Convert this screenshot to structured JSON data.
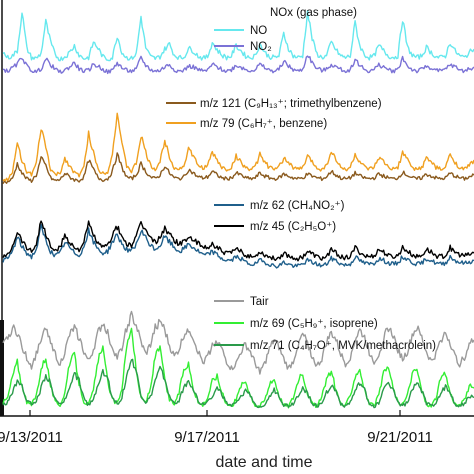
{
  "chart_data": {
    "type": "line",
    "xlabel": "date and time",
    "x_ticks": [
      "9/13/2011",
      "9/17/2011",
      "9/21/2011"
    ],
    "panels": [
      {
        "name": "nox",
        "legend_title": "NOx (gas phase)",
        "legend_placement": "top-right",
        "series": [
          {
            "name": "NO",
            "color": "#66e8ee",
            "values": [
              0.5,
              0.44,
              0.46,
              0.52,
              0.98,
              0.55,
              0.44,
              0.43,
              0.49,
              0.86,
              0.62,
              0.47,
              0.42,
              0.45,
              0.5,
              0.58,
              0.47,
              0.43,
              0.44,
              0.62,
              0.55,
              0.45,
              0.42,
              0.44,
              0.7,
              0.5,
              0.44,
              0.43,
              0.48,
              0.92,
              0.56,
              0.45,
              0.43,
              0.45,
              0.54,
              0.6,
              0.47,
              0.44,
              0.44,
              0.55,
              0.52,
              0.46,
              0.43,
              0.45,
              0.62,
              0.53,
              0.47,
              0.44,
              0.46,
              0.58,
              0.52,
              0.46,
              0.44,
              0.46,
              0.6,
              0.5,
              0.45,
              0.44,
              0.46,
              0.72,
              0.55,
              0.46,
              0.44,
              0.46,
              0.98,
              0.66,
              0.48,
              0.44,
              0.46,
              0.62,
              0.53,
              0.46,
              0.44,
              0.46,
              0.85,
              0.58,
              0.47,
              0.44,
              0.46,
              0.58,
              0.52,
              0.46,
              0.44,
              0.46,
              0.9,
              0.56,
              0.47,
              0.44,
              0.46,
              0.56,
              0.5,
              0.45,
              0.44,
              0.46,
              0.62,
              0.52,
              0.46,
              0.44,
              0.5,
              0.54
            ]
          },
          {
            "name": "NO₂",
            "color": "#7b72d6",
            "values": [
              0.3,
              0.28,
              0.32,
              0.36,
              0.45,
              0.34,
              0.29,
              0.27,
              0.31,
              0.42,
              0.36,
              0.3,
              0.27,
              0.29,
              0.33,
              0.38,
              0.31,
              0.28,
              0.29,
              0.36,
              0.34,
              0.3,
              0.27,
              0.29,
              0.38,
              0.32,
              0.29,
              0.28,
              0.3,
              0.44,
              0.35,
              0.3,
              0.28,
              0.29,
              0.33,
              0.36,
              0.3,
              0.28,
              0.29,
              0.34,
              0.33,
              0.3,
              0.28,
              0.29,
              0.36,
              0.33,
              0.3,
              0.28,
              0.3,
              0.35,
              0.33,
              0.3,
              0.29,
              0.3,
              0.36,
              0.32,
              0.29,
              0.28,
              0.3,
              0.4,
              0.34,
              0.3,
              0.28,
              0.3,
              0.48,
              0.38,
              0.31,
              0.29,
              0.3,
              0.36,
              0.33,
              0.3,
              0.28,
              0.3,
              0.42,
              0.35,
              0.3,
              0.28,
              0.3,
              0.35,
              0.33,
              0.3,
              0.28,
              0.3,
              0.44,
              0.34,
              0.3,
              0.28,
              0.3,
              0.34,
              0.32,
              0.29,
              0.28,
              0.3,
              0.36,
              0.33,
              0.3,
              0.28,
              0.31,
              0.33
            ]
          }
        ]
      },
      {
        "name": "aromatics",
        "legend_placement": "top-right",
        "series": [
          {
            "name": "m/z 121 (C₉H₁₃⁺; trimethylbenzene)",
            "color": "#8a5a1e",
            "values": [
              0.1,
              0.11,
              0.14,
              0.3,
              0.2,
              0.14,
              0.12,
              0.18,
              0.36,
              0.28,
              0.15,
              0.12,
              0.13,
              0.2,
              0.16,
              0.13,
              0.12,
              0.16,
              0.34,
              0.24,
              0.15,
              0.13,
              0.14,
              0.22,
              0.4,
              0.26,
              0.16,
              0.14,
              0.18,
              0.3,
              0.22,
              0.16,
              0.14,
              0.18,
              0.28,
              0.2,
              0.15,
              0.14,
              0.16,
              0.24,
              0.2,
              0.16,
              0.15,
              0.16,
              0.22,
              0.18,
              0.15,
              0.14,
              0.15,
              0.2,
              0.18,
              0.15,
              0.14,
              0.15,
              0.2,
              0.17,
              0.15,
              0.14,
              0.15,
              0.19,
              0.17,
              0.15,
              0.14,
              0.15,
              0.19,
              0.17,
              0.15,
              0.14,
              0.16,
              0.22,
              0.18,
              0.15,
              0.14,
              0.15,
              0.2,
              0.17,
              0.15,
              0.14,
              0.15,
              0.19,
              0.17,
              0.15,
              0.14,
              0.15,
              0.21,
              0.18,
              0.15,
              0.14,
              0.15,
              0.19,
              0.17,
              0.15,
              0.14,
              0.15,
              0.2,
              0.17,
              0.15,
              0.14,
              0.16,
              0.18
            ]
          },
          {
            "name": "m/z 79 (C₆H₇⁺, benzene)",
            "color": "#f0a020",
            "values": [
              0.12,
              0.14,
              0.2,
              0.52,
              0.34,
              0.22,
              0.18,
              0.3,
              0.68,
              0.48,
              0.24,
              0.18,
              0.2,
              0.36,
              0.28,
              0.2,
              0.18,
              0.26,
              0.62,
              0.42,
              0.24,
              0.2,
              0.22,
              0.4,
              0.85,
              0.5,
              0.28,
              0.22,
              0.3,
              0.6,
              0.42,
              0.28,
              0.24,
              0.32,
              0.55,
              0.38,
              0.26,
              0.24,
              0.28,
              0.46,
              0.38,
              0.28,
              0.26,
              0.28,
              0.42,
              0.34,
              0.26,
              0.24,
              0.26,
              0.38,
              0.32,
              0.26,
              0.24,
              0.26,
              0.4,
              0.32,
              0.26,
              0.24,
              0.26,
              0.36,
              0.32,
              0.26,
              0.24,
              0.26,
              0.38,
              0.32,
              0.26,
              0.24,
              0.28,
              0.44,
              0.34,
              0.26,
              0.24,
              0.26,
              0.4,
              0.32,
              0.26,
              0.24,
              0.26,
              0.36,
              0.32,
              0.26,
              0.24,
              0.26,
              0.42,
              0.34,
              0.26,
              0.24,
              0.26,
              0.36,
              0.32,
              0.26,
              0.24,
              0.26,
              0.4,
              0.32,
              0.26,
              0.24,
              0.28,
              0.34
            ]
          }
        ]
      },
      {
        "name": "oxygenates",
        "legend_placement": "top-right",
        "series": [
          {
            "name": "m/z 62 (CH₄NO₂⁺)",
            "color": "#1f5f8b",
            "values": [
              0.3,
              0.32,
              0.4,
              0.55,
              0.45,
              0.38,
              0.34,
              0.42,
              0.66,
              0.52,
              0.4,
              0.35,
              0.38,
              0.5,
              0.44,
              0.38,
              0.36,
              0.44,
              0.62,
              0.5,
              0.42,
              0.38,
              0.4,
              0.5,
              0.58,
              0.48,
              0.42,
              0.4,
              0.46,
              0.62,
              0.54,
              0.46,
              0.42,
              0.46,
              0.56,
              0.5,
              0.44,
              0.4,
              0.42,
              0.48,
              0.44,
              0.4,
              0.36,
              0.36,
              0.4,
              0.36,
              0.32,
              0.3,
              0.3,
              0.34,
              0.32,
              0.28,
              0.26,
              0.26,
              0.3,
              0.28,
              0.26,
              0.24,
              0.24,
              0.28,
              0.26,
              0.24,
              0.24,
              0.26,
              0.3,
              0.28,
              0.26,
              0.24,
              0.26,
              0.32,
              0.3,
              0.26,
              0.25,
              0.26,
              0.34,
              0.3,
              0.27,
              0.26,
              0.27,
              0.32,
              0.3,
              0.27,
              0.26,
              0.27,
              0.34,
              0.31,
              0.28,
              0.26,
              0.27,
              0.32,
              0.3,
              0.27,
              0.26,
              0.27,
              0.34,
              0.3,
              0.28,
              0.27,
              0.28,
              0.3
            ]
          },
          {
            "name": "m/z 45 (C₂H₅O⁺)",
            "color": "#000000",
            "values": [
              0.34,
              0.36,
              0.46,
              0.62,
              0.52,
              0.44,
              0.4,
              0.48,
              0.74,
              0.58,
              0.46,
              0.4,
              0.44,
              0.58,
              0.5,
              0.44,
              0.42,
              0.5,
              0.7,
              0.58,
              0.48,
              0.44,
              0.46,
              0.58,
              0.66,
              0.56,
              0.48,
              0.46,
              0.54,
              0.72,
              0.62,
              0.54,
              0.5,
              0.54,
              0.66,
              0.58,
              0.52,
              0.48,
              0.5,
              0.56,
              0.52,
              0.48,
              0.44,
              0.44,
              0.48,
              0.44,
              0.4,
              0.38,
              0.38,
              0.42,
              0.4,
              0.36,
              0.34,
              0.34,
              0.4,
              0.36,
              0.34,
              0.32,
              0.33,
              0.38,
              0.35,
              0.33,
              0.32,
              0.34,
              0.4,
              0.37,
              0.34,
              0.32,
              0.34,
              0.42,
              0.38,
              0.34,
              0.33,
              0.34,
              0.44,
              0.39,
              0.35,
              0.34,
              0.35,
              0.42,
              0.39,
              0.35,
              0.34,
              0.35,
              0.44,
              0.4,
              0.36,
              0.34,
              0.35,
              0.42,
              0.39,
              0.35,
              0.34,
              0.35,
              0.44,
              0.39,
              0.36,
              0.35,
              0.36,
              0.38
            ]
          }
        ]
      },
      {
        "name": "biogenic",
        "legend_placement": "top-right",
        "series": [
          {
            "name": "Tair",
            "color": "#9a9a9a",
            "values": [
              0.55,
              0.62,
              0.7,
              0.66,
              0.55,
              0.45,
              0.38,
              0.48,
              0.62,
              0.68,
              0.6,
              0.48,
              0.4,
              0.5,
              0.64,
              0.7,
              0.62,
              0.5,
              0.42,
              0.52,
              0.66,
              0.74,
              0.66,
              0.54,
              0.45,
              0.54,
              0.7,
              0.8,
              0.72,
              0.58,
              0.48,
              0.56,
              0.7,
              0.76,
              0.68,
              0.55,
              0.46,
              0.52,
              0.64,
              0.7,
              0.62,
              0.5,
              0.42,
              0.46,
              0.56,
              0.6,
              0.52,
              0.42,
              0.36,
              0.4,
              0.5,
              0.56,
              0.5,
              0.4,
              0.34,
              0.4,
              0.52,
              0.6,
              0.54,
              0.44,
              0.36,
              0.42,
              0.56,
              0.64,
              0.58,
              0.46,
              0.38,
              0.44,
              0.58,
              0.66,
              0.6,
              0.48,
              0.4,
              0.46,
              0.6,
              0.68,
              0.62,
              0.5,
              0.42,
              0.48,
              0.62,
              0.7,
              0.64,
              0.52,
              0.44,
              0.5,
              0.64,
              0.7,
              0.62,
              0.5,
              0.42,
              0.48,
              0.6,
              0.66,
              0.58,
              0.46,
              0.4,
              0.46,
              0.56,
              0.6
            ]
          },
          {
            "name": "m/z 69 (C₅H₉⁺, isoprene)",
            "color": "#33ee33",
            "values": [
              0.08,
              0.12,
              0.3,
              0.42,
              0.2,
              0.08,
              0.06,
              0.14,
              0.36,
              0.46,
              0.22,
              0.08,
              0.06,
              0.16,
              0.4,
              0.48,
              0.24,
              0.09,
              0.06,
              0.18,
              0.44,
              0.52,
              0.26,
              0.1,
              0.07,
              0.2,
              0.55,
              0.72,
              0.34,
              0.12,
              0.08,
              0.2,
              0.46,
              0.54,
              0.26,
              0.1,
              0.07,
              0.16,
              0.36,
              0.4,
              0.2,
              0.08,
              0.06,
              0.12,
              0.26,
              0.3,
              0.16,
              0.07,
              0.05,
              0.1,
              0.22,
              0.26,
              0.14,
              0.06,
              0.05,
              0.1,
              0.22,
              0.28,
              0.14,
              0.06,
              0.05,
              0.12,
              0.26,
              0.32,
              0.16,
              0.07,
              0.05,
              0.12,
              0.28,
              0.34,
              0.18,
              0.07,
              0.05,
              0.14,
              0.3,
              0.36,
              0.18,
              0.07,
              0.05,
              0.14,
              0.32,
              0.38,
              0.2,
              0.08,
              0.06,
              0.14,
              0.32,
              0.36,
              0.18,
              0.07,
              0.05,
              0.12,
              0.28,
              0.32,
              0.16,
              0.07,
              0.05,
              0.1,
              0.22,
              0.2
            ]
          },
          {
            "name": "m/z 71 (C₄H₇O⁺, MVK/methacrolein)",
            "color": "#2a9a4a",
            "values": [
              0.06,
              0.08,
              0.16,
              0.26,
              0.22,
              0.1,
              0.06,
              0.09,
              0.2,
              0.3,
              0.24,
              0.1,
              0.06,
              0.1,
              0.22,
              0.32,
              0.26,
              0.11,
              0.06,
              0.1,
              0.24,
              0.34,
              0.28,
              0.12,
              0.07,
              0.12,
              0.3,
              0.44,
              0.34,
              0.14,
              0.08,
              0.12,
              0.26,
              0.36,
              0.28,
              0.12,
              0.07,
              0.1,
              0.2,
              0.26,
              0.2,
              0.09,
              0.06,
              0.08,
              0.14,
              0.2,
              0.15,
              0.07,
              0.05,
              0.07,
              0.12,
              0.18,
              0.14,
              0.06,
              0.05,
              0.07,
              0.12,
              0.18,
              0.14,
              0.06,
              0.05,
              0.07,
              0.14,
              0.2,
              0.16,
              0.07,
              0.05,
              0.08,
              0.16,
              0.22,
              0.17,
              0.07,
              0.05,
              0.08,
              0.17,
              0.24,
              0.18,
              0.07,
              0.05,
              0.08,
              0.18,
              0.25,
              0.19,
              0.08,
              0.05,
              0.08,
              0.18,
              0.24,
              0.18,
              0.07,
              0.05,
              0.08,
              0.16,
              0.21,
              0.16,
              0.07,
              0.05,
              0.07,
              0.13,
              0.12
            ]
          }
        ]
      }
    ]
  }
}
